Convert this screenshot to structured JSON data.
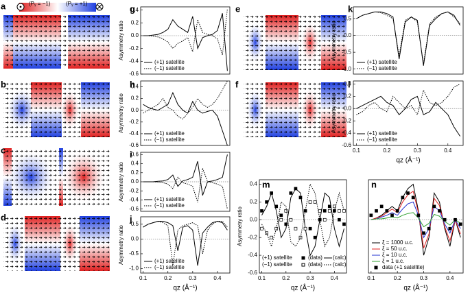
{
  "figure": {
    "image_labels": [
      "a",
      "b",
      "c",
      "d",
      "e",
      "f"
    ],
    "colorbar_labels": [
      "(Pᵧ = −1)",
      "(Pᵧ = +1)"
    ]
  },
  "chart_data": [
    {
      "type": "line",
      "panel": "g",
      "ylabel": "Asymmetry ratio",
      "xlim": [
        0.09,
        0.45
      ],
      "ylim": [
        -0.6,
        0.45
      ],
      "yticks": [
        -0.6,
        -0.4,
        -0.2,
        {
          "value": 0,
          "label": "0.0"
        },
        0.2,
        0.4
      ],
      "zero_line": true,
      "legend": "lower left",
      "x": [
        0.1,
        0.12,
        0.14,
        0.16,
        0.18,
        0.2,
        0.22,
        0.24,
        0.26,
        0.28,
        0.3,
        0.32,
        0.34,
        0.36,
        0.38,
        0.4,
        0.42,
        0.44
      ],
      "series": [
        {
          "name": "(+1) satellite",
          "color": "#000000",
          "dash": "solid",
          "values": [
            0,
            0,
            0.01,
            0.02,
            0.05,
            0.1,
            0.25,
            0.15,
            0.1,
            0.05,
            0.3,
            -0.2,
            -0.03,
            0,
            0.02,
            0.08,
            0.35,
            -0.55
          ]
        },
        {
          "name": "(−1) satellite",
          "color": "#000000",
          "dash": "dotted",
          "values": [
            0,
            0,
            -0.01,
            -0.02,
            -0.05,
            -0.1,
            -0.2,
            -0.12,
            -0.08,
            -0.03,
            -0.25,
            0.25,
            0.05,
            0.02,
            0,
            -0.05,
            -0.3,
            0.42
          ]
        }
      ]
    },
    {
      "type": "line",
      "panel": "h",
      "ylabel": "Asymmetry ratio",
      "xlim": [
        0.09,
        0.45
      ],
      "ylim": [
        -0.6,
        0.5
      ],
      "yticks": [
        -0.6,
        -0.4,
        -0.2,
        {
          "value": 0,
          "label": "0.0"
        },
        0.2,
        0.4
      ],
      "zero_line": true,
      "legend": "lower left",
      "x": [
        0.1,
        0.12,
        0.14,
        0.16,
        0.18,
        0.2,
        0.22,
        0.24,
        0.26,
        0.28,
        0.3,
        0.32,
        0.34,
        0.36,
        0.38,
        0.4,
        0.42,
        0.44
      ],
      "series": [
        {
          "name": "(+1) satellite",
          "color": "#000000",
          "dash": "solid",
          "values": [
            0.1,
            0.05,
            0.02,
            0,
            0.05,
            0.1,
            0.3,
            0.1,
            0,
            -0.05,
            0.15,
            0,
            -0.05,
            -0.02,
            0,
            -0.1,
            -0.35,
            -0.6
          ]
        },
        {
          "name": "(−1) satellite",
          "color": "#000000",
          "dash": "dotted",
          "values": [
            -0.05,
            0,
            0.05,
            0.1,
            0.2,
            0.05,
            0,
            -0.1,
            -0.15,
            -0.05,
            0.05,
            0.2,
            0.1,
            0.05,
            0.1,
            0.2,
            0.35,
            0.5
          ]
        }
      ]
    },
    {
      "type": "line",
      "panel": "i",
      "ylabel": "Asymmetry ratio",
      "xlim": [
        0.09,
        0.45
      ],
      "ylim": [
        -0.65,
        0.65
      ],
      "yticks": [
        -0.6,
        -0.4,
        -0.2,
        {
          "value": 0,
          "label": "0.0"
        },
        0.2,
        0.4,
        0.6
      ],
      "zero_line": true,
      "legend": "lower left",
      "x": [
        0.1,
        0.12,
        0.14,
        0.16,
        0.18,
        0.2,
        0.22,
        0.24,
        0.26,
        0.28,
        0.3,
        0.32,
        0.34,
        0.36,
        0.38,
        0.4,
        0.42,
        0.44
      ],
      "series": [
        {
          "name": "(+1) satellite",
          "color": "#000000",
          "dash": "solid",
          "values": [
            0,
            0,
            0,
            0.01,
            0.02,
            0.05,
            0.15,
            -0.1,
            0.02,
            0.05,
            0.1,
            0.45,
            -0.3,
            0,
            0.02,
            0.05,
            0.1,
            0.6
          ]
        },
        {
          "name": "(−1) satellite",
          "color": "#000000",
          "dash": "dotted",
          "values": [
            0,
            0,
            0,
            -0.01,
            -0.02,
            -0.05,
            -0.15,
            0.1,
            -0.02,
            -0.05,
            -0.1,
            -0.45,
            0.3,
            0,
            -0.02,
            -0.05,
            -0.1,
            -0.6
          ]
        }
      ]
    },
    {
      "type": "line",
      "panel": "j",
      "ylabel": "Asymmetry ratio",
      "xlabel": "qz (Å⁻¹)",
      "xlim": [
        0.09,
        0.45
      ],
      "ylim": [
        -1.15,
        0.75
      ],
      "xticks": [
        0.1,
        0.2,
        0.3,
        0.4
      ],
      "yticks": [
        {
          "value": -1,
          "label": "-1.0"
        },
        -0.5,
        {
          "value": 0,
          "label": "0.0"
        },
        0.5
      ],
      "zero_line": true,
      "legend": "lower left",
      "x": [
        0.1,
        0.12,
        0.14,
        0.16,
        0.18,
        0.2,
        0.22,
        0.24,
        0.26,
        0.28,
        0.3,
        0.32,
        0.34,
        0.36,
        0.38,
        0.4,
        0.42,
        0.44
      ],
      "series": [
        {
          "name": "(+1) satellite",
          "color": "#000000",
          "dash": "solid",
          "values": [
            0.4,
            0.5,
            0.55,
            0.6,
            0.6,
            0.55,
            0.45,
            -0.4,
            0.4,
            0.45,
            0.3,
            -0.9,
            0.2,
            0.4,
            0.55,
            0.6,
            0.55,
            0.3
          ]
        },
        {
          "name": "(−1) satellite",
          "color": "#000000",
          "dash": "dotted",
          "values": [
            0.4,
            0.5,
            0.55,
            0.6,
            0.55,
            0.45,
            -0.9,
            0.3,
            0.45,
            0.5,
            0.55,
            0.45,
            -0.5,
            0.3,
            0.5,
            0.6,
            0.6,
            0.4
          ]
        }
      ]
    },
    {
      "type": "line",
      "panel": "k",
      "ylabel": "Asymmetry ratio",
      "xlim": [
        0.09,
        0.45
      ],
      "ylim": [
        -1.15,
        0.85
      ],
      "yticks": [
        {
          "value": -1,
          "label": "-1.0"
        },
        -0.5,
        {
          "value": 0,
          "label": "0.0"
        },
        0.5
      ],
      "zero_line": true,
      "legend": "lower left",
      "x": [
        0.1,
        0.12,
        0.14,
        0.16,
        0.18,
        0.2,
        0.22,
        0.24,
        0.26,
        0.28,
        0.3,
        0.32,
        0.34,
        0.36,
        0.38,
        0.4,
        0.42,
        0.44
      ],
      "series": [
        {
          "name": "(+1) satellite",
          "color": "#000000",
          "dash": "solid",
          "values": [
            0.5,
            0.6,
            0.65,
            0.7,
            0.7,
            0.65,
            0.55,
            -0.7,
            0.4,
            0.55,
            0.45,
            -0.9,
            0.3,
            0.5,
            0.65,
            0.7,
            0.6,
            0.3
          ]
        },
        {
          "name": "(−1) satellite",
          "color": "#000000",
          "dash": "dotted",
          "values": [
            0.5,
            0.6,
            0.65,
            0.7,
            0.68,
            0.6,
            0.5,
            -0.6,
            0.45,
            0.55,
            0.4,
            -0.85,
            0.35,
            0.55,
            0.65,
            0.7,
            0.55,
            0.35
          ]
        }
      ]
    },
    {
      "type": "line",
      "panel": "l",
      "ylabel": "Asymmetry ratio",
      "xlabel": "qz (Å⁻¹)",
      "xlim": [
        0.09,
        0.45
      ],
      "ylim": [
        -0.6,
        0.45
      ],
      "xticks": [
        0.1,
        0.2,
        0.3,
        0.4
      ],
      "yticks": [
        -0.6,
        -0.4,
        -0.2,
        {
          "value": 0,
          "label": "0.0"
        },
        0.2,
        0.4
      ],
      "zero_line": true,
      "legend": "lower left",
      "x": [
        0.1,
        0.12,
        0.14,
        0.16,
        0.18,
        0.2,
        0.22,
        0.24,
        0.26,
        0.28,
        0.3,
        0.32,
        0.34,
        0.36,
        0.38,
        0.4,
        0.42,
        0.44
      ],
      "series": [
        {
          "name": "(+1) satellite",
          "color": "#000000",
          "dash": "solid",
          "values": [
            0,
            0.05,
            0.1,
            0.15,
            0.2,
            0.1,
            0.05,
            -0.1,
            0,
            0.15,
            0.2,
            -0.1,
            -0.05,
            0.1,
            0,
            -0.1,
            -0.3,
            -0.45
          ]
        },
        {
          "name": "(−1) satellite",
          "color": "#000000",
          "dash": "dotted",
          "values": [
            -0.1,
            -0.05,
            0.05,
            0.1,
            0,
            -0.05,
            0.2,
            0.1,
            0,
            0.05,
            -0.1,
            0.3,
            0.1,
            0.05,
            0.1,
            0.2,
            0.35,
            0.4
          ]
        }
      ]
    },
    {
      "type": "line",
      "panel": "m",
      "ylabel": "Asymmetry ratio",
      "xlabel": "qz (Å⁻¹)",
      "xlim": [
        0.09,
        0.45
      ],
      "ylim": [
        -0.6,
        0.45
      ],
      "xticks": [
        0.1,
        0.2,
        0.3,
        0.4
      ],
      "yticks": [
        -0.6,
        -0.4,
        -0.2,
        {
          "value": 0,
          "label": "0.0"
        },
        0.2,
        0.4
      ],
      "zero_line": true,
      "legend": "lower left",
      "legend_groups": [
        "(+1) satellite",
        "(−1) satellite"
      ],
      "x": [
        0.1,
        0.12,
        0.14,
        0.16,
        0.18,
        0.2,
        0.22,
        0.24,
        0.26,
        0.28,
        0.3,
        0.32,
        0.34,
        0.36,
        0.38,
        0.4,
        0.42,
        0.44
      ],
      "series": [
        {
          "name": "(data)",
          "color": "#000000",
          "mode": "markers",
          "marker": "filled",
          "values": [
            0.1,
            0.2,
            0.3,
            0.15,
            0.05,
            -0.05,
            0.3,
            0.35,
            0.25,
            0.1,
            -0.1,
            -0.2,
            0,
            0.1,
            0.15,
            0.1,
            0,
            -0.05
          ]
        },
        {
          "name": "(calc)",
          "color": "#000000",
          "dash": "solid",
          "values": [
            0.05,
            0.15,
            0.3,
            0.1,
            -0.2,
            -0.1,
            0.25,
            0.35,
            0.3,
            -0.1,
            -0.4,
            -0.3,
            0,
            0.3,
            0.25,
            -0.1,
            -0.3,
            -0.1
          ]
        },
        {
          "name": "(data)",
          "color": "#000000",
          "mode": "markers",
          "marker": "open",
          "values": [
            -0.1,
            -0.15,
            -0.2,
            -0.1,
            0,
            0.1,
            0,
            -0.1,
            -0.2,
            -0.1,
            0.2,
            0.2,
            0.1,
            0,
            0.1,
            0.15,
            0.1,
            0.1
          ]
        },
        {
          "name": "(calc)",
          "color": "#000000",
          "dash": "dotted",
          "values": [
            -0.05,
            -0.15,
            -0.3,
            -0.1,
            0.2,
            0.15,
            -0.25,
            -0.3,
            -0.2,
            0.1,
            0.4,
            0.3,
            0,
            -0.3,
            -0.2,
            0.1,
            0.3,
            0.1
          ]
        }
      ]
    },
    {
      "type": "line",
      "panel": "n",
      "xlabel": "qz (Å⁻¹)",
      "xlim": [
        0.09,
        0.45
      ],
      "ylim": [
        -0.6,
        0.45
      ],
      "xticks": [
        0.1,
        0.2,
        0.3,
        0.4
      ],
      "zero_line": true,
      "legend": "lower left",
      "x": [
        0.1,
        0.12,
        0.14,
        0.16,
        0.18,
        0.2,
        0.22,
        0.24,
        0.26,
        0.28,
        0.3,
        0.32,
        0.34,
        0.36,
        0.38,
        0.4,
        0.42,
        0.44
      ],
      "series": [
        {
          "name": "ξ = 1000 u.c.",
          "color": "#000000",
          "dash": "solid",
          "values": [
            0,
            0.02,
            0.05,
            0.1,
            0.15,
            0.1,
            0.25,
            0.35,
            0.4,
            0.1,
            -0.4,
            -0.2,
            0.3,
            0.2,
            -0.1,
            -0.3,
            0,
            -0.2
          ]
        },
        {
          "name": "ξ = 50 u.c.",
          "color": "#e02020",
          "dash": "solid",
          "values": [
            0,
            0.02,
            0.04,
            0.08,
            0.12,
            0.08,
            0.2,
            0.28,
            0.32,
            0.08,
            -0.32,
            -0.16,
            0.24,
            0.16,
            -0.08,
            -0.24,
            0,
            -0.16
          ]
        },
        {
          "name": "ξ = 10 u.c.",
          "color": "#2030d0",
          "dash": "solid",
          "values": [
            0,
            0.01,
            0.03,
            0.05,
            0.08,
            0.05,
            0.12,
            0.18,
            0.2,
            0.05,
            -0.2,
            -0.1,
            0.15,
            0.1,
            -0.05,
            -0.15,
            0,
            -0.1
          ]
        },
        {
          "name": "ξ = 1 u.c.",
          "color": "#30a030",
          "dash": "solid",
          "values": [
            0,
            0.01,
            0.01,
            0.02,
            0.03,
            0.02,
            0.05,
            0.07,
            0.08,
            0.02,
            -0.08,
            -0.04,
            0.06,
            0.04,
            -0.02,
            -0.06,
            0,
            -0.04
          ]
        },
        {
          "name": "data (+1 satellite)",
          "color": "#000000",
          "mode": "markers",
          "marker": "filled",
          "values": [
            0.05,
            0.1,
            0.15,
            0.1,
            0.05,
            0.1,
            0.25,
            0.3,
            0.25,
            0.05,
            -0.15,
            -0.1,
            0.15,
            0.1,
            0,
            -0.1,
            0,
            -0.05
          ]
        }
      ]
    }
  ]
}
